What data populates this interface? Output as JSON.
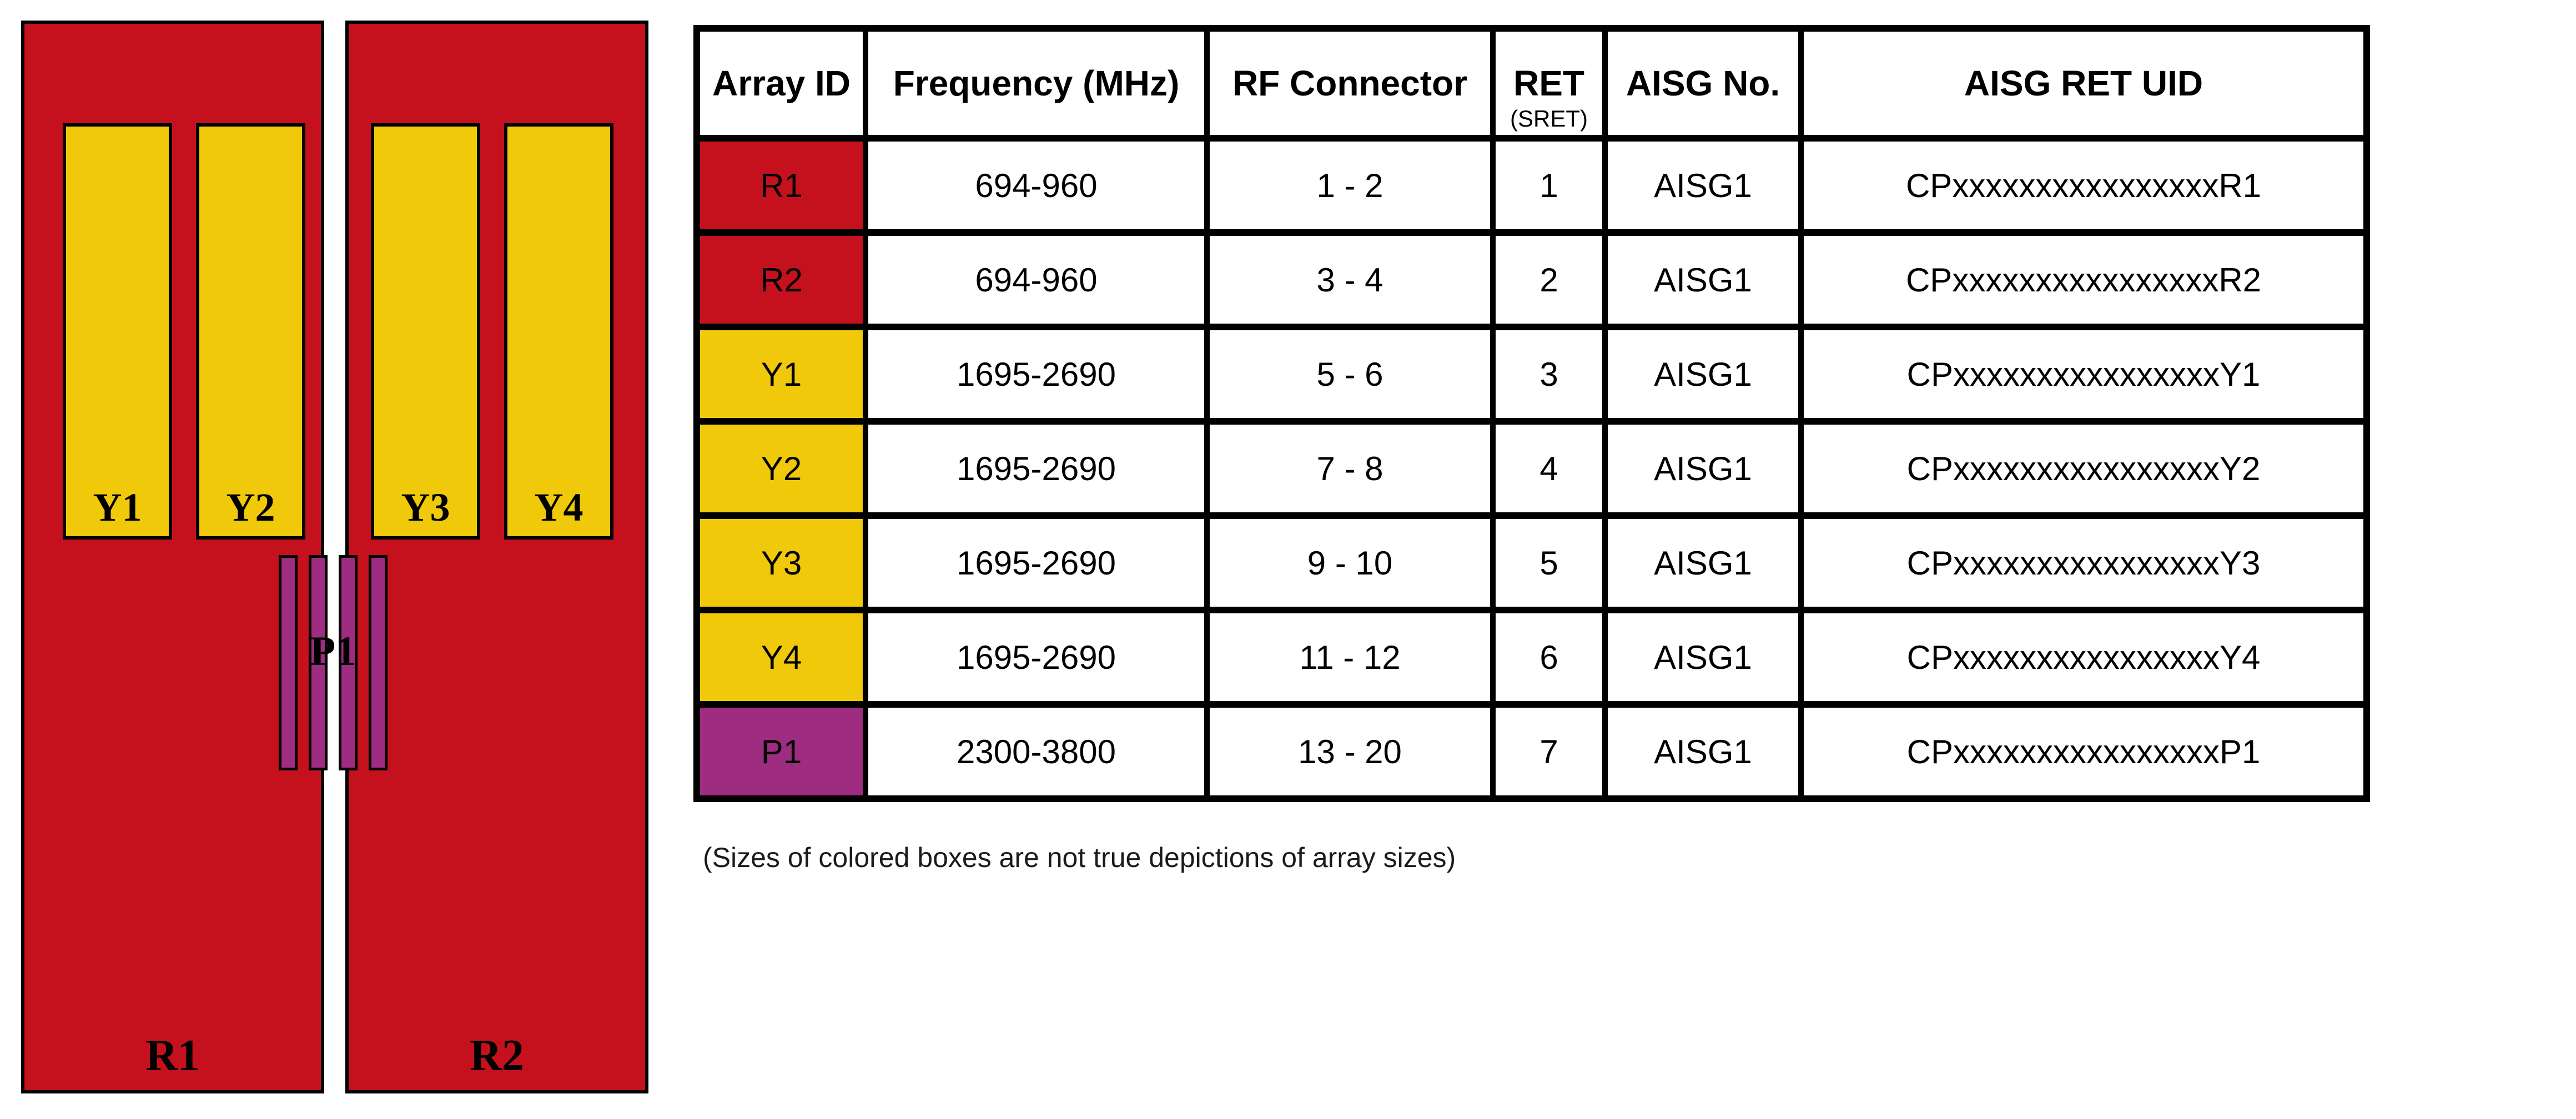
{
  "diagram": {
    "colors": {
      "red": "#C4111D",
      "yellow": "#EFC90A",
      "purple": "#9E2C80",
      "outline": "#000000"
    },
    "red_arrays": [
      {
        "id": "R1",
        "label": "R1"
      },
      {
        "id": "R2",
        "label": "R2"
      }
    ],
    "yellow_arrays": [
      {
        "id": "Y1",
        "label": "Y1"
      },
      {
        "id": "Y2",
        "label": "Y2"
      },
      {
        "id": "Y3",
        "label": "Y3"
      },
      {
        "id": "Y4",
        "label": "Y4"
      }
    ],
    "purple_array": {
      "id": "P1",
      "label": "P1"
    }
  },
  "table": {
    "columns": [
      {
        "key": "array_id",
        "label": "Array ID"
      },
      {
        "key": "frequency",
        "label": "Frequency (MHz)"
      },
      {
        "key": "rf_connector",
        "label": "RF Connector"
      },
      {
        "key": "ret",
        "label": "RET",
        "sublabel": "(SRET)"
      },
      {
        "key": "aisg_no",
        "label": "AISG No."
      },
      {
        "key": "aisg_ret_uid",
        "label": "AISG RET UID"
      }
    ],
    "rows": [
      {
        "array_id": "R1",
        "color": "red",
        "frequency": "694-960",
        "rf_connector": "1 - 2",
        "ret": "1",
        "aisg_no": "AISG1",
        "aisg_ret_uid": "CPxxxxxxxxxxxxxxxxR1"
      },
      {
        "array_id": "R2",
        "color": "red",
        "frequency": "694-960",
        "rf_connector": "3 - 4",
        "ret": "2",
        "aisg_no": "AISG1",
        "aisg_ret_uid": "CPxxxxxxxxxxxxxxxxR2"
      },
      {
        "array_id": "Y1",
        "color": "yellow",
        "frequency": "1695-2690",
        "rf_connector": "5 - 6",
        "ret": "3",
        "aisg_no": "AISG1",
        "aisg_ret_uid": "CPxxxxxxxxxxxxxxxxY1"
      },
      {
        "array_id": "Y2",
        "color": "yellow",
        "frequency": "1695-2690",
        "rf_connector": "7 - 8",
        "ret": "4",
        "aisg_no": "AISG1",
        "aisg_ret_uid": "CPxxxxxxxxxxxxxxxxY2"
      },
      {
        "array_id": "Y3",
        "color": "yellow",
        "frequency": "1695-2690",
        "rf_connector": "9 - 10",
        "ret": "5",
        "aisg_no": "AISG1",
        "aisg_ret_uid": "CPxxxxxxxxxxxxxxxxY3"
      },
      {
        "array_id": "Y4",
        "color": "yellow",
        "frequency": "1695-2690",
        "rf_connector": "11 - 12",
        "ret": "6",
        "aisg_no": "AISG1",
        "aisg_ret_uid": "CPxxxxxxxxxxxxxxxxY4"
      },
      {
        "array_id": "P1",
        "color": "purple",
        "frequency": "2300-3800",
        "rf_connector": "13 - 20",
        "ret": "7",
        "aisg_no": "AISG1",
        "aisg_ret_uid": "CPxxxxxxxxxxxxxxxxP1"
      }
    ]
  },
  "note": "(Sizes of colored boxes are not true depictions of array sizes)"
}
